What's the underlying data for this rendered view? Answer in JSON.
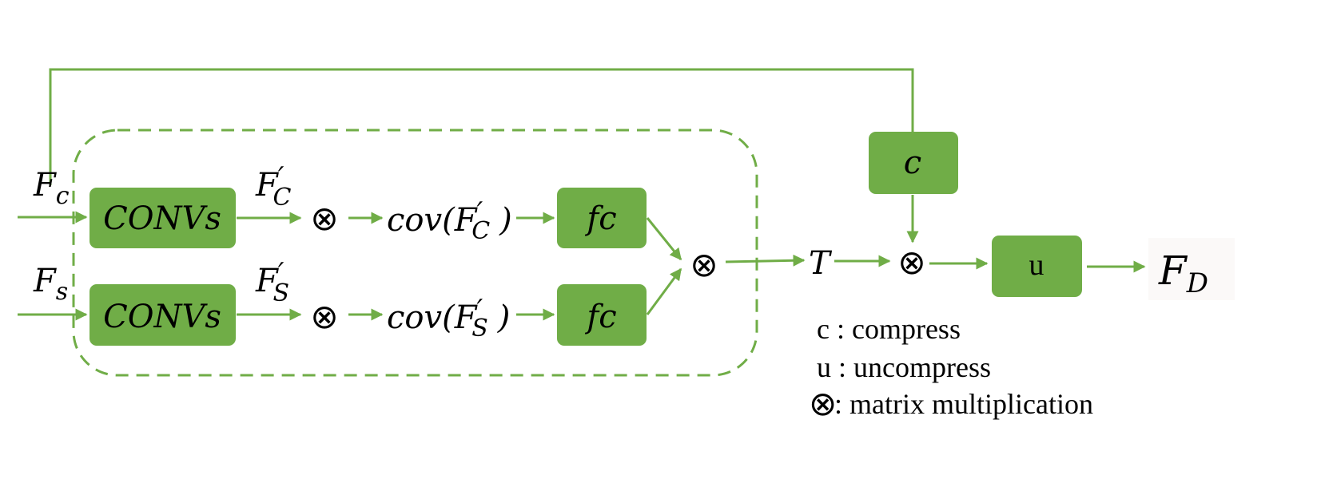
{
  "colors": {
    "box_fill": "#70ad47",
    "line": "#70ad47",
    "text": "#000000"
  },
  "inputs": {
    "fc_base": "F",
    "fc_sub": "c",
    "fs_base": "F",
    "fs_sub": "s"
  },
  "boxes": {
    "convs_top": "CONVs",
    "convs_bottom": "CONVs",
    "fc_top": "fc",
    "fc_bottom": "fc",
    "compress": "c",
    "uncompress": "u"
  },
  "intermediate": {
    "fc_prime_base": "F",
    "fc_prime_sub": "C",
    "fs_prime_base": "F",
    "fs_prime_sub": "S",
    "prime": "′",
    "cov_prefix": "cov(",
    "cov_suffix": ")"
  },
  "operator_symbol": "⊗",
  "outputs": {
    "t_label": "T",
    "fd_base": "F",
    "fd_sub": "D"
  },
  "legend": {
    "c_line": "c : compress",
    "u_line": "u : uncompress",
    "otimes_line": ": matrix multiplication"
  }
}
